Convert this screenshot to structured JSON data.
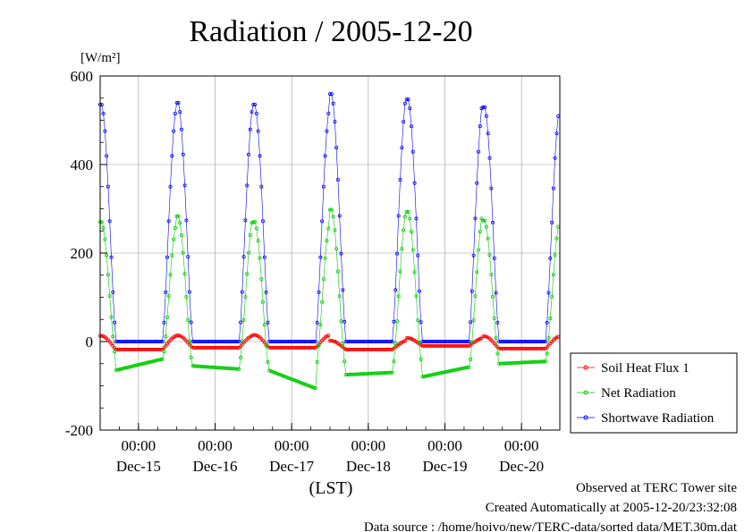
{
  "chart_data": {
    "type": "line",
    "title": "Radiation / 2005-12-20",
    "ylabel": "[W/m²]",
    "xlabel": "(LST)",
    "ylim": [
      -200,
      600
    ],
    "yticks": [
      -200,
      0,
      200,
      400,
      600
    ],
    "xlim": [
      0,
      6
    ],
    "x_unit": "days from 2005-12-14 12:00 LST",
    "xticks": [
      {
        "x": 0.5,
        "time": "00:00",
        "date": "Dec-15"
      },
      {
        "x": 1.5,
        "time": "00:00",
        "date": "Dec-16"
      },
      {
        "x": 2.5,
        "time": "00:00",
        "date": "Dec-17"
      },
      {
        "x": 3.5,
        "time": "00:00",
        "date": "Dec-18"
      },
      {
        "x": 4.5,
        "time": "00:00",
        "date": "Dec-19"
      },
      {
        "x": 5.5,
        "time": "00:00",
        "date": "Dec-20"
      }
    ],
    "grid": true,
    "legend_position": "right-bottom, outside plot",
    "days": [
      {
        "sw_peak": 538,
        "net_peak": 272,
        "soil_peak": 13,
        "net_night_start": -65,
        "net_night_end": -40,
        "soil_night": -18,
        "net_night_max": -40
      },
      {
        "sw_peak": 542,
        "net_peak": 285,
        "soil_peak": 14,
        "net_night_start": -55,
        "net_night_end": -62,
        "soil_night": -14,
        "net_night_max": -55
      },
      {
        "sw_peak": 538,
        "net_peak": 272,
        "soil_peak": 15,
        "net_night_start": -65,
        "net_night_end": -105,
        "soil_night": -14,
        "net_night_max": -65
      },
      {
        "sw_peak": 562,
        "net_peak": 300,
        "soil_peak": 2,
        "net_night_start": -75,
        "net_night_end": -70,
        "soil_night": -18,
        "net_night_max": -65
      },
      {
        "sw_peak": 550,
        "net_peak": 295,
        "soil_peak": 8,
        "net_night_start": -80,
        "net_night_end": -58,
        "soil_night": -10,
        "net_night_max": -60
      },
      {
        "sw_peak": 532,
        "net_peak": 275,
        "soil_peak": 12,
        "net_night_start": -50,
        "net_night_end": -45,
        "soil_night": -16,
        "net_night_max": -45
      }
    ],
    "series": [
      {
        "name": "Soil Heat Flux 1",
        "color": "#ff0000"
      },
      {
        "name": "Net Radiation",
        "color": "#00cc00"
      },
      {
        "name": "Shortwave Radiation",
        "color": "#0000ff"
      }
    ]
  },
  "footer": {
    "observed": "Observed at TERC Tower site",
    "created": "Created Automatically at 2005-12-20/23:32:08",
    "source": "Data source : /home/hoivo/new/TERC-data/sorted data/MET.30m.dat"
  }
}
